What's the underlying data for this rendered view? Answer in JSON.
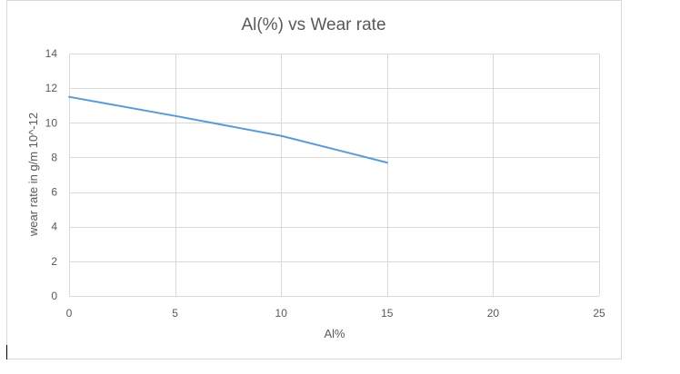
{
  "chart_data": {
    "type": "line",
    "title": "Al(%) vs Wear rate",
    "xlabel": "Al%",
    "ylabel": "wear rate in g/m 10^-12",
    "xlim": [
      0,
      25
    ],
    "ylim": [
      0,
      14
    ],
    "x_ticks": [
      0,
      5,
      10,
      15,
      20,
      25
    ],
    "y_ticks": [
      0,
      2,
      4,
      6,
      8,
      10,
      12,
      14
    ],
    "grid": true,
    "legend": "none",
    "series": [
      {
        "color": "#5b9bd5",
        "x": [
          0,
          5,
          10,
          15
        ],
        "y": [
          11.5,
          10.4,
          9.25,
          7.7
        ]
      }
    ]
  }
}
